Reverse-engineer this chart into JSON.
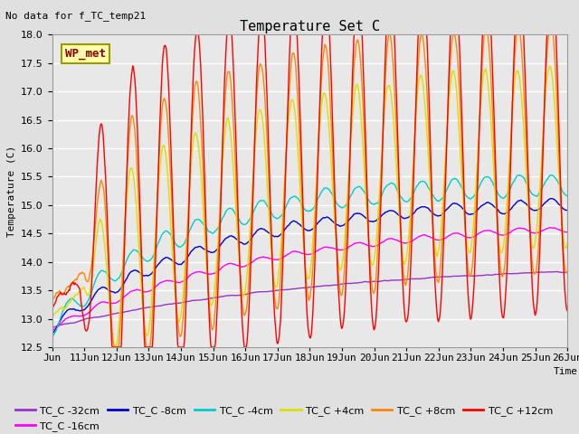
{
  "title": "Temperature Set C",
  "subtitle": "No data for f_TC_temp21",
  "xlabel": "Time",
  "ylabel": "Temperature (C)",
  "ylim": [
    12.5,
    18.0
  ],
  "background_color": "#e0e0e0",
  "plot_bg_color": "#e8e8e8",
  "grid_color": "#ffffff",
  "series": [
    {
      "label": "TC_C -32cm",
      "color": "#9933cc"
    },
    {
      "label": "TC_C -16cm",
      "color": "#ff00ff"
    },
    {
      "label": "TC_C -8cm",
      "color": "#0000cc"
    },
    {
      "label": "TC_C -4cm",
      "color": "#00cccc"
    },
    {
      "label": "TC_C +4cm",
      "color": "#dddd00"
    },
    {
      "label": "TC_C +8cm",
      "color": "#ff8800"
    },
    {
      "label": "TC_C +12cm",
      "color": "#ff0000"
    }
  ],
  "wp_met_box_color": "#ffffaa",
  "wp_met_border_color": "#999900",
  "wp_met_text_color": "#880000",
  "title_fontsize": 11,
  "label_fontsize": 8,
  "tick_fontsize": 8,
  "legend_fontsize": 8
}
